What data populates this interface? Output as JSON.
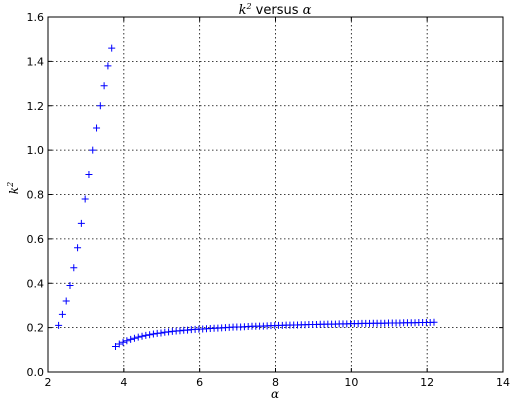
{
  "chart_data": {
    "type": "scatter",
    "title": {
      "k": "k",
      "sup": "2",
      "versus": " versus ",
      "alpha": "α"
    },
    "xlabel": "α",
    "ylabel": {
      "k": "k",
      "sup": "2"
    },
    "xlim": [
      2,
      14
    ],
    "ylim": [
      0,
      1.6
    ],
    "xticks": [
      "2",
      "4",
      "6",
      "8",
      "10",
      "12",
      "14"
    ],
    "yticks": [
      "0.0",
      "0.2",
      "0.4",
      "0.6",
      "0.8",
      "1.0",
      "1.2",
      "1.4",
      "1.6"
    ],
    "xtick_values": [
      2,
      4,
      6,
      8,
      10,
      12,
      14
    ],
    "ytick_values": [
      0,
      0.2,
      0.4,
      0.6,
      0.8,
      1.0,
      1.2,
      1.4,
      1.6
    ],
    "grid": true,
    "marker": "+",
    "color": "#0000ff",
    "series": [
      {
        "x": [
          2.28,
          2.38,
          2.48,
          2.58,
          2.68,
          2.78,
          2.88,
          2.98,
          3.08,
          3.18,
          3.28,
          3.38,
          3.48,
          3.58,
          3.68
        ],
        "y": [
          0.21,
          0.26,
          0.32,
          0.39,
          0.47,
          0.56,
          0.67,
          0.78,
          0.89,
          1.0,
          1.1,
          1.2,
          1.29,
          1.38,
          1.46
        ]
      },
      {
        "x": [
          3.78,
          3.88,
          3.98,
          4.08,
          4.18,
          4.28,
          4.38,
          4.48,
          4.58,
          4.68,
          4.78,
          4.88,
          4.98,
          5.08,
          5.18,
          5.28,
          5.38,
          5.48,
          5.58,
          5.68,
          5.78,
          5.88,
          5.98,
          6.08,
          6.18,
          6.28,
          6.38,
          6.48,
          6.58,
          6.68,
          6.78,
          6.88,
          6.98,
          7.08,
          7.18,
          7.28,
          7.38,
          7.48,
          7.58,
          7.68,
          7.78,
          7.88,
          7.98,
          8.08,
          8.18,
          8.28,
          8.38,
          8.48,
          8.58,
          8.68,
          8.78,
          8.88,
          8.98,
          9.08,
          9.18,
          9.28,
          9.38,
          9.48,
          9.58,
          9.68,
          9.78,
          9.88,
          9.98,
          10.08,
          10.18,
          10.28,
          10.38,
          10.48,
          10.58,
          10.68,
          10.78,
          10.88,
          10.98,
          11.08,
          11.18,
          11.28,
          11.38,
          11.48,
          11.58,
          11.68,
          11.78,
          11.88,
          11.98,
          12.08,
          12.18
        ],
        "y": [
          0.115,
          0.126,
          0.134,
          0.141,
          0.147,
          0.152,
          0.157,
          0.161,
          0.165,
          0.168,
          0.171,
          0.174,
          0.176,
          0.179,
          0.181,
          0.183,
          0.185,
          0.186,
          0.188,
          0.189,
          0.191,
          0.192,
          0.193,
          0.194,
          0.195,
          0.196,
          0.197,
          0.198,
          0.199,
          0.2,
          0.201,
          0.202,
          0.203,
          0.203,
          0.204,
          0.205,
          0.206,
          0.206,
          0.207,
          0.207,
          0.208,
          0.209,
          0.209,
          0.21,
          0.21,
          0.211,
          0.211,
          0.212,
          0.212,
          0.213,
          0.213,
          0.214,
          0.214,
          0.214,
          0.215,
          0.215,
          0.216,
          0.216,
          0.216,
          0.217,
          0.217,
          0.217,
          0.218,
          0.218,
          0.218,
          0.219,
          0.219,
          0.219,
          0.22,
          0.22,
          0.22,
          0.22,
          0.221,
          0.221,
          0.221,
          0.221,
          0.222,
          0.222,
          0.222,
          0.222,
          0.223,
          0.223,
          0.223,
          0.223,
          0.224
        ]
      }
    ]
  }
}
